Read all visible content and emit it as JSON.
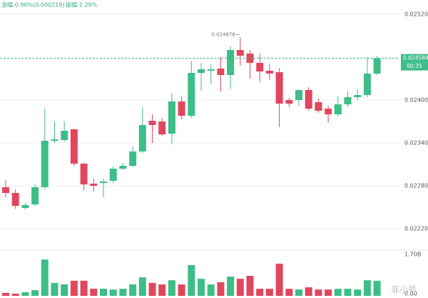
{
  "header": {
    "change": "涨幅:0.90%(0.000219)",
    "amplitude": "振幅:1.29%"
  },
  "chart_data": {
    "type": "candlestick",
    "up_color": "#3dbd88",
    "down_color": "#e0475f",
    "open": [
      0.02278,
      0.0227,
      0.02249,
      0.02254,
      0.02278,
      0.02343,
      0.02344,
      0.02359,
      0.02311,
      0.02283,
      0.02284,
      0.02287,
      0.02304,
      0.02308,
      0.02328,
      0.02371,
      0.0237,
      0.02353,
      0.02398,
      0.02378,
      0.02438,
      0.02441,
      0.02444,
      0.02435,
      0.0247,
      0.02465,
      0.02452,
      0.02441,
      0.02439,
      0.024,
      0.024,
      0.02414,
      0.02397,
      0.02388,
      0.0238,
      0.02394,
      0.02404,
      0.02407,
      0.02437
    ],
    "high": [
      0.02288,
      0.02275,
      0.02256,
      0.02282,
      0.02388,
      0.0237,
      0.0237,
      0.0236,
      0.02312,
      0.0229,
      0.0229,
      0.02307,
      0.02312,
      0.02335,
      0.0239,
      0.0238,
      0.02375,
      0.0241,
      0.02405,
      0.02455,
      0.02452,
      0.0245,
      0.0246,
      0.02475,
      0.024876,
      0.0247,
      0.02465,
      0.0245,
      0.02445,
      0.02403,
      0.02415,
      0.02418,
      0.02402,
      0.02392,
      0.02405,
      0.02412,
      0.02415,
      0.0246,
      0.02462
    ],
    "low": [
      0.02264,
      0.02248,
      0.02247,
      0.02252,
      0.02275,
      0.0234,
      0.02342,
      0.02308,
      0.02274,
      0.02272,
      0.02264,
      0.02284,
      0.02302,
      0.02306,
      0.02326,
      0.0234,
      0.0235,
      0.02338,
      0.02373,
      0.02375,
      0.02413,
      0.02422,
      0.02412,
      0.02415,
      0.02448,
      0.0243,
      0.02425,
      0.02428,
      0.02362,
      0.0239,
      0.02392,
      0.02385,
      0.02382,
      0.02368,
      0.02377,
      0.0239,
      0.024,
      0.02404,
      0.02435
    ],
    "close": [
      0.0227,
      0.02252,
      0.02253,
      0.02278,
      0.02343,
      0.02345,
      0.02357,
      0.02311,
      0.02282,
      0.0228,
      0.02286,
      0.02304,
      0.02308,
      0.02328,
      0.02365,
      0.02365,
      0.02352,
      0.02398,
      0.02378,
      0.02438,
      0.02443,
      0.02443,
      0.02435,
      0.0247,
      0.02462,
      0.02452,
      0.0244,
      0.02437,
      0.02395,
      0.02395,
      0.02414,
      0.02388,
      0.02385,
      0.0238,
      0.02394,
      0.02404,
      0.02407,
      0.02437,
      0.024584
    ],
    "volume": [
      0.12,
      0.09,
      0.15,
      0.23,
      1.49,
      0.53,
      0.47,
      0.62,
      0.62,
      0.29,
      0.29,
      0.26,
      0.29,
      0.47,
      0.76,
      0.53,
      0.47,
      0.64,
      0.47,
      1.26,
      0.7,
      0.47,
      0.56,
      0.79,
      0.7,
      0.82,
      0.29,
      0.29,
      1.32,
      0.29,
      0.26,
      0.35,
      0.26,
      0.26,
      0.29,
      0.29,
      0.26,
      0.64,
      0.62
    ],
    "ylim": [
      0.02195,
      0.0254
    ],
    "yticks": [
      {
        "value": 0.0252,
        "label": "0.025200"
      },
      {
        "value": 0.0246,
        "label": "0.024600"
      },
      {
        "value": 0.024,
        "label": "0.024000"
      },
      {
        "value": 0.0234,
        "label": "0.023400"
      },
      {
        "value": 0.0228,
        "label": "0.022800"
      },
      {
        "value": 0.0222,
        "label": "0.022200"
      }
    ],
    "volume_ylim": [
      0,
      1.7
    ],
    "volume_ticks": [
      {
        "value": 1.7,
        "label": "1.70B"
      },
      {
        "value": 0,
        "label": "0.00"
      }
    ],
    "current_price": 0.024584,
    "countdown": "00:35",
    "watermark": "非小号"
  }
}
